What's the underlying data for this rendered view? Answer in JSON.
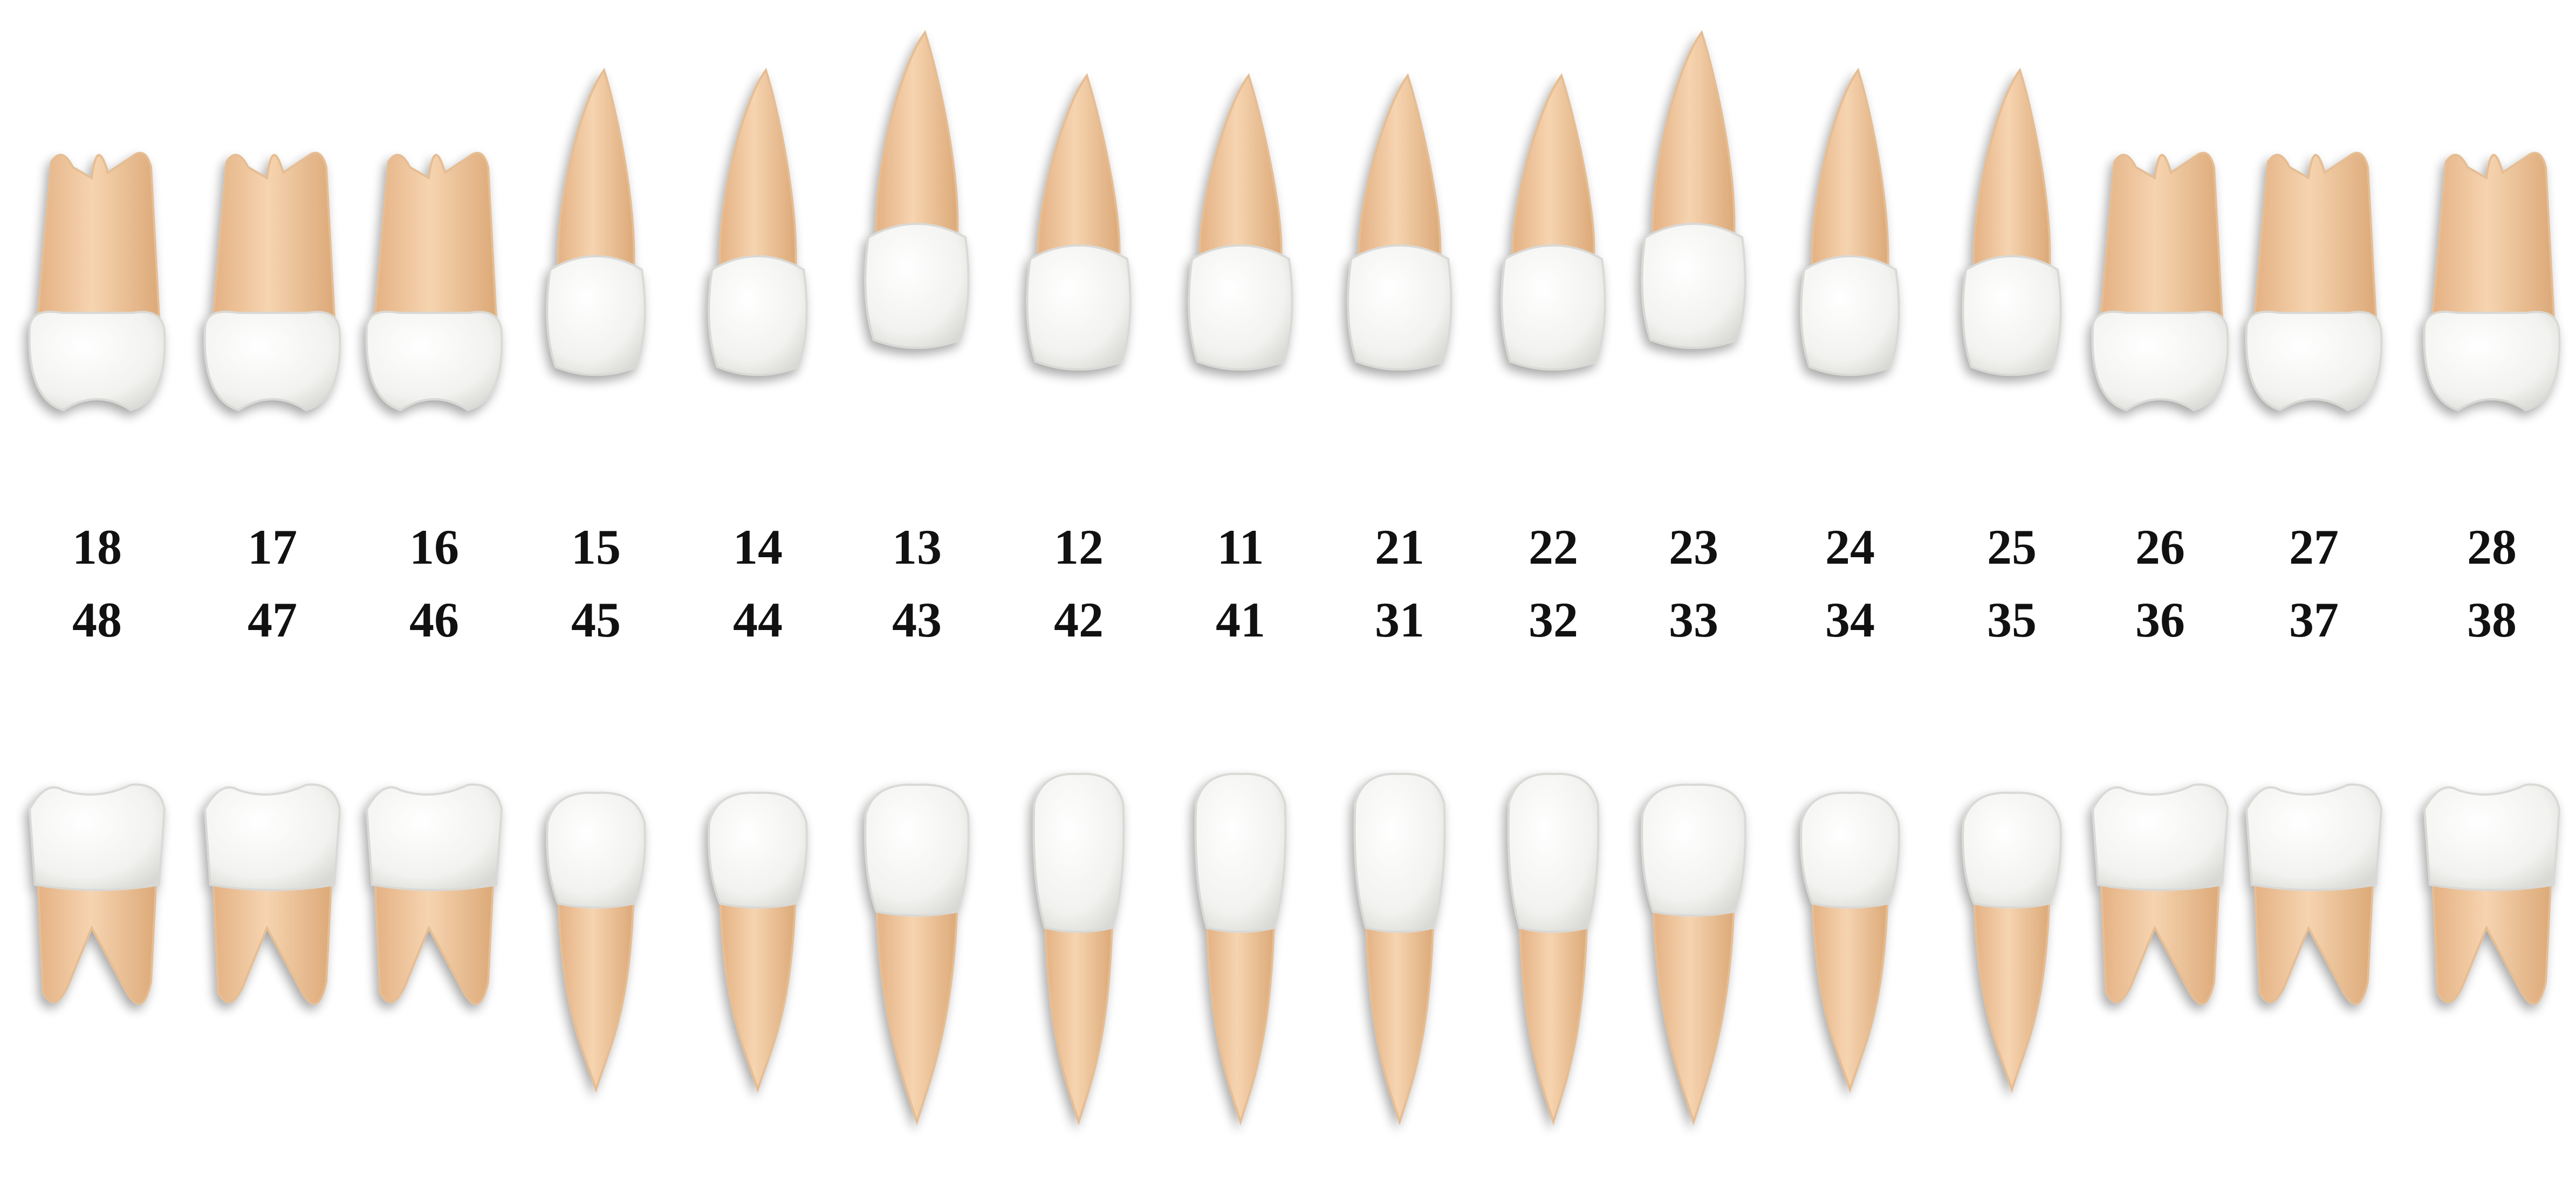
{
  "upper_row": {
    "teeth": [
      {
        "top": "18",
        "bottom": "48",
        "type": "molar"
      },
      {
        "top": "17",
        "bottom": "47",
        "type": "molar"
      },
      {
        "top": "16",
        "bottom": "46",
        "type": "molar"
      },
      {
        "top": "15",
        "bottom": "45",
        "type": "premolar"
      },
      {
        "top": "14",
        "bottom": "44",
        "type": "premolar"
      },
      {
        "top": "13",
        "bottom": "43",
        "type": "canine"
      },
      {
        "top": "12",
        "bottom": "42",
        "type": "incisor"
      },
      {
        "top": "11",
        "bottom": "41",
        "type": "incisor"
      },
      {
        "top": "21",
        "bottom": "31",
        "type": "incisor"
      },
      {
        "top": "22",
        "bottom": "32",
        "type": "incisor"
      },
      {
        "top": "23",
        "bottom": "33",
        "type": "canine"
      },
      {
        "top": "24",
        "bottom": "34",
        "type": "premolar"
      },
      {
        "top": "25",
        "bottom": "35",
        "type": "premolar"
      },
      {
        "top": "26",
        "bottom": "36",
        "type": "molar"
      },
      {
        "top": "27",
        "bottom": "37",
        "type": "molar"
      },
      {
        "top": "28",
        "bottom": "38",
        "type": "molar"
      }
    ]
  },
  "colors": {
    "crown": "#f4f4f2",
    "crown_edge": "#d9d9d6",
    "root": "#f1c9a1",
    "root_dark": "#d9a877",
    "label": "#111111"
  }
}
